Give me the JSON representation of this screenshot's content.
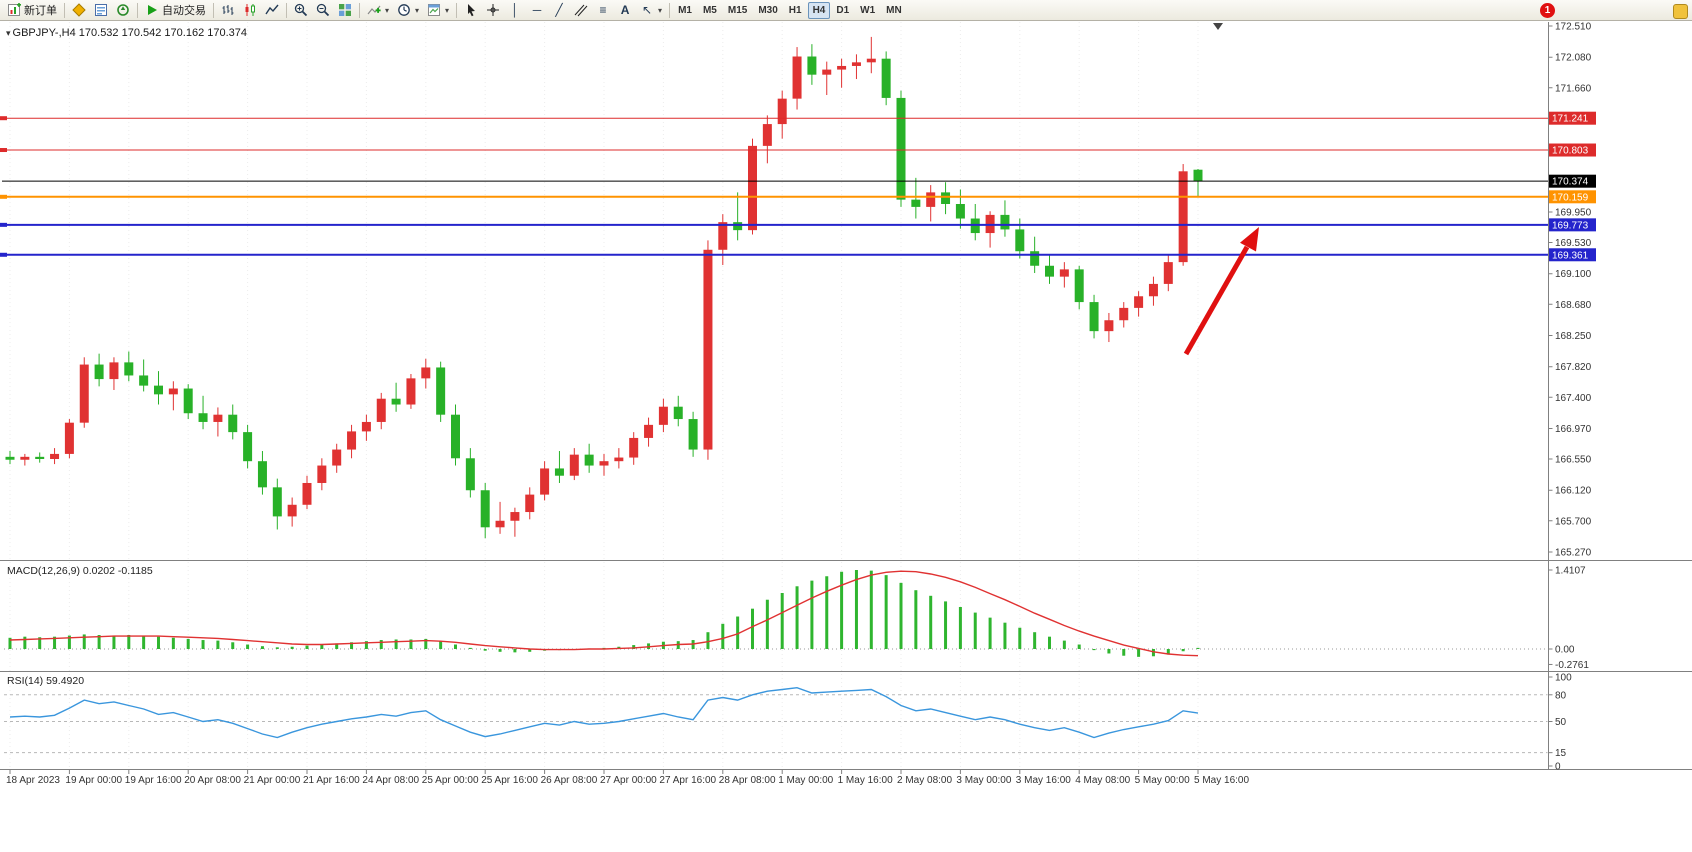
{
  "toolbar": {
    "new_order_label": "新订单",
    "auto_trading_label": "自动交易",
    "timeframes": [
      "M1",
      "M5",
      "M15",
      "M30",
      "H1",
      "H4",
      "D1",
      "W1",
      "MN"
    ],
    "active_timeframe": "H4",
    "notification_count": "1"
  },
  "chart_header": {
    "symbol_period": "GBPJPY-,H4",
    "ohlc": "170.532 170.542 170.162 170.374"
  },
  "indicator_labels": {
    "macd": "MACD(12,26,9) 0.0202 -0.1185",
    "rsi": "RSI(14) 59.4920"
  },
  "colors": {
    "up": "#e03232",
    "down": "#28b128",
    "macd_hist": "#2fb52f",
    "macd_signal": "#e03232",
    "rsi_line": "#3a96dd",
    "line_red": "#dd2b2b",
    "line_orange": "#ff9300",
    "line_blue": "#2424cc",
    "price_line": "#000000",
    "arrow": "#e01010"
  },
  "chart_data": {
    "type": "candlestick",
    "symbol": "GBPJPY-",
    "period": "H4",
    "price_range": {
      "max": 172.51,
      "min": 165.27
    },
    "price_axis_ticks": [
      "172.510",
      "172.080",
      "171.660",
      "169.950",
      "169.530",
      "169.100",
      "168.680",
      "168.250",
      "167.820",
      "167.400",
      "166.970",
      "166.550",
      "166.120",
      "165.700",
      "165.270"
    ],
    "time_labels": [
      "18 Apr 2023",
      "19 Apr 00:00",
      "19 Apr 16:00",
      "20 Apr 08:00",
      "21 Apr 00:00",
      "21 Apr 16:00",
      "24 Apr 08:00",
      "25 Apr 00:00",
      "25 Apr 16:00",
      "26 Apr 08:00",
      "27 Apr 00:00",
      "27 Apr 16:00",
      "28 Apr 08:00",
      "1 May 00:00",
      "1 May 16:00",
      "2 May 08:00",
      "3 May 00:00",
      "3 May 16:00",
      "4 May 08:00",
      "5 May 00:00",
      "5 May 16:00"
    ],
    "hlines": [
      {
        "label": "171.241",
        "price": 171.241,
        "color": "#dd2b2b",
        "width": 1
      },
      {
        "label": "170.803",
        "price": 170.803,
        "color": "#dd2b2b",
        "width": 1
      },
      {
        "label": "170.159",
        "price": 170.159,
        "color": "#ff9300",
        "width": 2
      },
      {
        "label": "169.773",
        "price": 169.773,
        "color": "#2424cc",
        "width": 2
      },
      {
        "label": "169.361",
        "price": 169.361,
        "color": "#2424cc",
        "width": 2
      }
    ],
    "current_price": {
      "label": "170.374",
      "price": 170.374
    },
    "candles": [
      [
        166.58,
        166.66,
        166.48,
        166.54
      ],
      [
        166.54,
        166.62,
        166.46,
        166.58
      ],
      [
        166.58,
        166.64,
        166.5,
        166.55
      ],
      [
        166.55,
        166.7,
        166.48,
        166.62
      ],
      [
        166.62,
        167.1,
        166.56,
        167.05
      ],
      [
        167.05,
        167.95,
        166.98,
        167.85
      ],
      [
        167.85,
        168.0,
        167.55,
        167.65
      ],
      [
        167.65,
        167.95,
        167.5,
        167.88
      ],
      [
        167.88,
        168.03,
        167.62,
        167.7
      ],
      [
        167.7,
        167.92,
        167.48,
        167.56
      ],
      [
        167.56,
        167.76,
        167.3,
        167.44
      ],
      [
        167.44,
        167.62,
        167.22,
        167.52
      ],
      [
        167.52,
        167.58,
        167.1,
        167.18
      ],
      [
        167.18,
        167.42,
        166.96,
        167.06
      ],
      [
        167.06,
        167.26,
        166.86,
        167.16
      ],
      [
        167.16,
        167.3,
        166.82,
        166.92
      ],
      [
        166.92,
        167.02,
        166.42,
        166.52
      ],
      [
        166.52,
        166.66,
        166.06,
        166.16
      ],
      [
        166.16,
        166.28,
        165.58,
        165.76
      ],
      [
        165.76,
        166.02,
        165.62,
        165.92
      ],
      [
        165.92,
        166.32,
        165.86,
        166.22
      ],
      [
        166.22,
        166.56,
        166.12,
        166.46
      ],
      [
        166.46,
        166.76,
        166.36,
        166.68
      ],
      [
        166.68,
        167.02,
        166.56,
        166.93
      ],
      [
        166.93,
        167.16,
        166.8,
        167.06
      ],
      [
        167.06,
        167.46,
        166.96,
        167.38
      ],
      [
        167.38,
        167.6,
        167.2,
        167.3
      ],
      [
        167.3,
        167.72,
        167.24,
        167.66
      ],
      [
        167.66,
        167.93,
        167.52,
        167.81
      ],
      [
        167.81,
        167.89,
        167.06,
        167.16
      ],
      [
        167.16,
        167.3,
        166.46,
        166.56
      ],
      [
        166.56,
        166.7,
        166.02,
        166.12
      ],
      [
        166.12,
        166.22,
        165.46,
        165.61
      ],
      [
        165.61,
        165.96,
        165.52,
        165.7
      ],
      [
        165.7,
        165.88,
        165.48,
        165.82
      ],
      [
        165.82,
        166.16,
        165.72,
        166.06
      ],
      [
        166.06,
        166.52,
        165.98,
        166.42
      ],
      [
        166.42,
        166.66,
        166.22,
        166.32
      ],
      [
        166.32,
        166.7,
        166.26,
        166.61
      ],
      [
        166.61,
        166.76,
        166.36,
        166.46
      ],
      [
        166.46,
        166.62,
        166.32,
        166.52
      ],
      [
        166.52,
        166.7,
        166.42,
        166.57
      ],
      [
        166.57,
        166.92,
        166.47,
        166.84
      ],
      [
        166.84,
        167.12,
        166.72,
        167.02
      ],
      [
        167.02,
        167.38,
        166.92,
        167.27
      ],
      [
        167.27,
        167.42,
        167.0,
        167.1
      ],
      [
        167.1,
        167.2,
        166.58,
        166.68
      ],
      [
        166.68,
        169.56,
        166.54,
        169.43
      ],
      [
        169.43,
        169.92,
        169.22,
        169.81
      ],
      [
        169.81,
        170.22,
        169.56,
        169.7
      ],
      [
        169.7,
        170.96,
        169.64,
        170.86
      ],
      [
        170.86,
        171.28,
        170.62,
        171.16
      ],
      [
        171.16,
        171.62,
        170.96,
        171.51
      ],
      [
        171.51,
        172.22,
        171.36,
        172.09
      ],
      [
        172.09,
        172.26,
        171.7,
        171.84
      ],
      [
        171.84,
        172.02,
        171.56,
        171.91
      ],
      [
        171.91,
        172.06,
        171.66,
        171.96
      ],
      [
        171.96,
        172.12,
        171.78,
        172.01
      ],
      [
        172.01,
        172.36,
        171.86,
        172.06
      ],
      [
        172.06,
        172.16,
        171.42,
        171.52
      ],
      [
        171.52,
        171.62,
        170.02,
        170.12
      ],
      [
        170.12,
        170.42,
        169.86,
        170.02
      ],
      [
        170.02,
        170.32,
        169.82,
        170.22
      ],
      [
        170.22,
        170.36,
        169.92,
        170.06
      ],
      [
        170.06,
        170.26,
        169.72,
        169.86
      ],
      [
        169.86,
        170.06,
        169.56,
        169.66
      ],
      [
        169.66,
        169.96,
        169.46,
        169.91
      ],
      [
        169.91,
        170.11,
        169.61,
        169.71
      ],
      [
        169.71,
        169.86,
        169.31,
        169.41
      ],
      [
        169.41,
        169.61,
        169.11,
        169.21
      ],
      [
        169.21,
        169.36,
        168.96,
        169.06
      ],
      [
        169.06,
        169.26,
        168.91,
        169.16
      ],
      [
        169.16,
        169.21,
        168.61,
        168.71
      ],
      [
        168.71,
        168.81,
        168.21,
        168.31
      ],
      [
        168.31,
        168.56,
        168.16,
        168.46
      ],
      [
        168.46,
        168.71,
        168.36,
        168.63
      ],
      [
        168.63,
        168.86,
        168.51,
        168.79
      ],
      [
        168.79,
        169.06,
        168.66,
        168.96
      ],
      [
        168.96,
        169.36,
        168.86,
        169.26
      ],
      [
        169.26,
        170.61,
        169.21,
        170.51
      ],
      [
        170.532,
        170.542,
        170.162,
        170.374
      ]
    ],
    "macd": {
      "name": "MACD(12,26,9)",
      "current_values": "0.0202 -0.1185",
      "axis_labels": [
        "1.4107",
        "0.00",
        "-0.2761"
      ],
      "max": 1.4107,
      "min": -0.2761,
      "values": [
        0.2,
        0.22,
        0.21,
        0.22,
        0.24,
        0.26,
        0.25,
        0.24,
        0.25,
        0.23,
        0.22,
        0.2,
        0.18,
        0.16,
        0.15,
        0.12,
        0.08,
        0.05,
        0.03,
        0.04,
        0.06,
        0.08,
        0.1,
        0.12,
        0.14,
        0.16,
        0.17,
        0.17,
        0.18,
        0.14,
        0.08,
        0.02,
        -0.03,
        -0.05,
        -0.06,
        -0.05,
        -0.03,
        -0.02,
        0.0,
        0.01,
        0.02,
        0.04,
        0.07,
        0.1,
        0.13,
        0.14,
        0.16,
        0.3,
        0.45,
        0.58,
        0.72,
        0.88,
        1.0,
        1.12,
        1.22,
        1.3,
        1.38,
        1.41,
        1.4,
        1.32,
        1.18,
        1.05,
        0.95,
        0.85,
        0.75,
        0.65,
        0.56,
        0.47,
        0.38,
        0.3,
        0.22,
        0.15,
        0.08,
        -0.02,
        -0.08,
        -0.12,
        -0.14,
        -0.13,
        -0.1,
        -0.04,
        0.02
      ],
      "signal": [
        0.16,
        0.17,
        0.18,
        0.19,
        0.2,
        0.21,
        0.22,
        0.23,
        0.23,
        0.23,
        0.23,
        0.22,
        0.21,
        0.2,
        0.19,
        0.17,
        0.15,
        0.13,
        0.11,
        0.09,
        0.08,
        0.08,
        0.09,
        0.1,
        0.11,
        0.12,
        0.13,
        0.14,
        0.15,
        0.14,
        0.12,
        0.09,
        0.06,
        0.04,
        0.02,
        0.0,
        -0.01,
        -0.01,
        -0.01,
        0.0,
        0.0,
        0.01,
        0.02,
        0.04,
        0.06,
        0.08,
        0.09,
        0.13,
        0.19,
        0.27,
        0.4,
        0.52,
        0.65,
        0.78,
        0.91,
        1.03,
        1.14,
        1.24,
        1.32,
        1.37,
        1.39,
        1.38,
        1.34,
        1.28,
        1.2,
        1.1,
        0.99,
        0.88,
        0.76,
        0.64,
        0.53,
        0.42,
        0.32,
        0.23,
        0.15,
        0.07,
        0.01,
        -0.05,
        -0.09,
        -0.11,
        -0.12
      ]
    },
    "rsi": {
      "name": "RSI(14)",
      "current_value": "59.4920",
      "axis_labels": [
        "100",
        "80",
        "50",
        "15",
        "0"
      ],
      "levels": [
        80,
        50,
        15
      ],
      "series": [
        55,
        56,
        55,
        57,
        65,
        74,
        70,
        72,
        68,
        64,
        58,
        60,
        55,
        50,
        52,
        48,
        42,
        36,
        32,
        38,
        43,
        47,
        50,
        53,
        55,
        58,
        56,
        60,
        62,
        52,
        45,
        38,
        33,
        36,
        40,
        44,
        48,
        46,
        50,
        47,
        48,
        50,
        53,
        56,
        59,
        55,
        52,
        74,
        77,
        74,
        80,
        84,
        86,
        88,
        82,
        83,
        84,
        85,
        86,
        78,
        68,
        62,
        64,
        60,
        56,
        52,
        55,
        52,
        47,
        43,
        40,
        43,
        38,
        32,
        37,
        41,
        44,
        47,
        51,
        62,
        59.49
      ]
    }
  }
}
